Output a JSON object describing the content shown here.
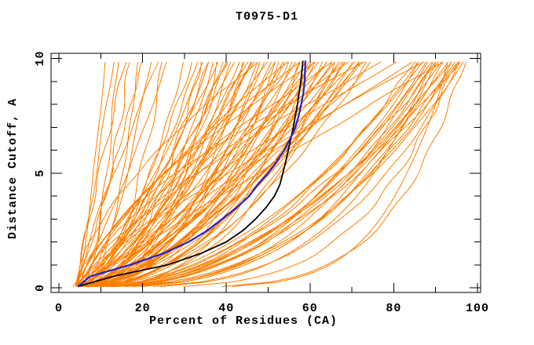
{
  "chart_data": {
    "type": "line",
    "title": "T0975-D1",
    "xlabel": "Percent of Residues (CA)",
    "ylabel": "Distance Cutoff, A",
    "xlim": [
      0,
      100
    ],
    "ylim": [
      0,
      10
    ],
    "grid": false,
    "legend": "none",
    "x_major_ticks": [
      0,
      20,
      40,
      60,
      80,
      100
    ],
    "x_major_tick_labels": [
      "0",
      "20",
      "40",
      "60",
      "80",
      "100"
    ],
    "x_minor_ticks": [
      10,
      30,
      50,
      70,
      90
    ],
    "y_major_ticks": [
      0,
      5,
      10
    ],
    "y_major_tick_labels": [
      "0",
      "5",
      "10"
    ],
    "y_minor_ticks": [
      1,
      2,
      3,
      4,
      6,
      7,
      8,
      9
    ],
    "colors": {
      "ensemble": "#ff7f00",
      "highlight_blue": "#2222cc",
      "highlight_black": "#000000",
      "axis": "#000000",
      "background": "#ffffff"
    },
    "cutoffs": [
      0.05,
      0.5,
      1,
      1.5,
      2,
      2.5,
      3,
      3.5,
      4,
      4.5,
      5,
      5.5,
      6,
      6.5,
      7,
      7.5,
      8,
      8.5,
      9,
      9.5,
      9.9
    ],
    "series": [
      {
        "name": "highlight-blue-model",
        "color": "#2222cc",
        "width": 2.2,
        "percent": [
          4.5,
          7.5,
          17,
          25,
          31,
          35.5,
          39,
          42.5,
          45.5,
          47.5,
          50,
          52,
          53.8,
          55.3,
          56.5,
          57.3,
          57.9,
          58.4,
          58.7,
          58.8,
          58.9
        ]
      },
      {
        "name": "highlight-black-model",
        "color": "#000000",
        "width": 1.8,
        "percent": [
          4.5,
          13,
          26,
          34,
          40,
          44,
          47,
          49.5,
          51.5,
          52.8,
          53.5,
          54.2,
          54.8,
          55.4,
          56,
          56.5,
          57,
          57.4,
          57.8,
          58.1,
          58.3
        ]
      }
    ],
    "ensemble_curves_format": "[percent_at_top_cutoff, shape_exponent, percent_at_zero_cutoff]",
    "ensemble_curves": [
      [
        11,
        0.7,
        4
      ],
      [
        13,
        0.9,
        4
      ],
      [
        14,
        0.5,
        5
      ],
      [
        16,
        1.1,
        4
      ],
      [
        17,
        0.65,
        4
      ],
      [
        19,
        0.45,
        5
      ],
      [
        20,
        0.9,
        4
      ],
      [
        22,
        0.6,
        5
      ],
      [
        24,
        1.15,
        4
      ],
      [
        25,
        0.5,
        6
      ],
      [
        26,
        0.8,
        3
      ],
      [
        30,
        0.55,
        4
      ],
      [
        32,
        0.7,
        5
      ],
      [
        34,
        0.45,
        4
      ],
      [
        35,
        0.8,
        6
      ],
      [
        36,
        0.6,
        4
      ],
      [
        37,
        0.5,
        5
      ],
      [
        38,
        0.75,
        4
      ],
      [
        39,
        0.55,
        5
      ],
      [
        40,
        0.65,
        4
      ],
      [
        41,
        0.45,
        6
      ],
      [
        42,
        0.8,
        4
      ],
      [
        43,
        0.6,
        5
      ],
      [
        44,
        0.5,
        4
      ],
      [
        45,
        0.7,
        5
      ],
      [
        46,
        0.55,
        4
      ],
      [
        47,
        0.85,
        5
      ],
      [
        48,
        0.6,
        4
      ],
      [
        49,
        0.45,
        5
      ],
      [
        50,
        0.75,
        4
      ],
      [
        51,
        0.55,
        6
      ],
      [
        52,
        0.65,
        4
      ],
      [
        53,
        0.5,
        5
      ],
      [
        54,
        0.8,
        4
      ],
      [
        55,
        0.6,
        5
      ],
      [
        56,
        0.45,
        4
      ],
      [
        57,
        0.7,
        5
      ],
      [
        58,
        0.55,
        4
      ],
      [
        59,
        0.65,
        6
      ],
      [
        60,
        0.5,
        4
      ],
      [
        61,
        0.75,
        5
      ],
      [
        62,
        0.6,
        4
      ],
      [
        63,
        0.45,
        5
      ],
      [
        64,
        0.8,
        4
      ],
      [
        65,
        0.55,
        5
      ],
      [
        66,
        0.65,
        4
      ],
      [
        67,
        0.5,
        6
      ],
      [
        68,
        0.7,
        4
      ],
      [
        69,
        0.6,
        5
      ],
      [
        70,
        0.45,
        4
      ],
      [
        71,
        0.75,
        5
      ],
      [
        72,
        0.55,
        4
      ],
      [
        73,
        0.65,
        5
      ],
      [
        74,
        0.5,
        4
      ],
      [
        75,
        0.7,
        6
      ],
      [
        44,
        0.35,
        4
      ],
      [
        52,
        0.38,
        5
      ],
      [
        60,
        0.35,
        4
      ],
      [
        38,
        0.4,
        5
      ],
      [
        66,
        0.38,
        4
      ],
      [
        48,
        0.42,
        5
      ],
      [
        33,
        0.6,
        4
      ],
      [
        46,
        0.62,
        5
      ],
      [
        54,
        0.58,
        4
      ],
      [
        61,
        0.52,
        5
      ],
      [
        68,
        0.48,
        4
      ],
      [
        72,
        0.62,
        5
      ],
      [
        40,
        0.52,
        4
      ],
      [
        36,
        0.68,
        5
      ],
      [
        58,
        0.4,
        4
      ],
      [
        64,
        0.58,
        5
      ],
      [
        55,
        1.3,
        4
      ],
      [
        62,
        1.5,
        5
      ],
      [
        70,
        1.2,
        4
      ],
      [
        78,
        1.4,
        5
      ],
      [
        85,
        1.1,
        6
      ],
      [
        48,
        1.6,
        4
      ],
      [
        88,
        1.25,
        5
      ],
      [
        74,
        1.55,
        4
      ],
      [
        66,
        1.35,
        5
      ],
      [
        58,
        1.45,
        6
      ],
      [
        81,
        1.2,
        4
      ],
      [
        92,
        1.05,
        5
      ],
      [
        85,
        0.45,
        5
      ],
      [
        86,
        0.4,
        6
      ],
      [
        87,
        0.5,
        4
      ],
      [
        88,
        0.35,
        5
      ],
      [
        89,
        0.45,
        6
      ],
      [
        90,
        0.4,
        4
      ],
      [
        91,
        0.5,
        5
      ],
      [
        92,
        0.35,
        6
      ],
      [
        93,
        0.42,
        4
      ],
      [
        94,
        0.48,
        5
      ],
      [
        95,
        0.38,
        6
      ],
      [
        96,
        0.45,
        4
      ],
      [
        97,
        0.4,
        5
      ],
      [
        96,
        0.32,
        6
      ],
      [
        94,
        0.36,
        4
      ],
      [
        92,
        0.45,
        5
      ],
      [
        90,
        0.34,
        6
      ],
      [
        88,
        0.42,
        4
      ],
      [
        86,
        0.48,
        5
      ],
      [
        96,
        0.5,
        5
      ],
      [
        97,
        0.2,
        8
      ],
      [
        95,
        0.25,
        6
      ],
      [
        93,
        0.18,
        9
      ],
      [
        90,
        0.28,
        5
      ]
    ]
  }
}
